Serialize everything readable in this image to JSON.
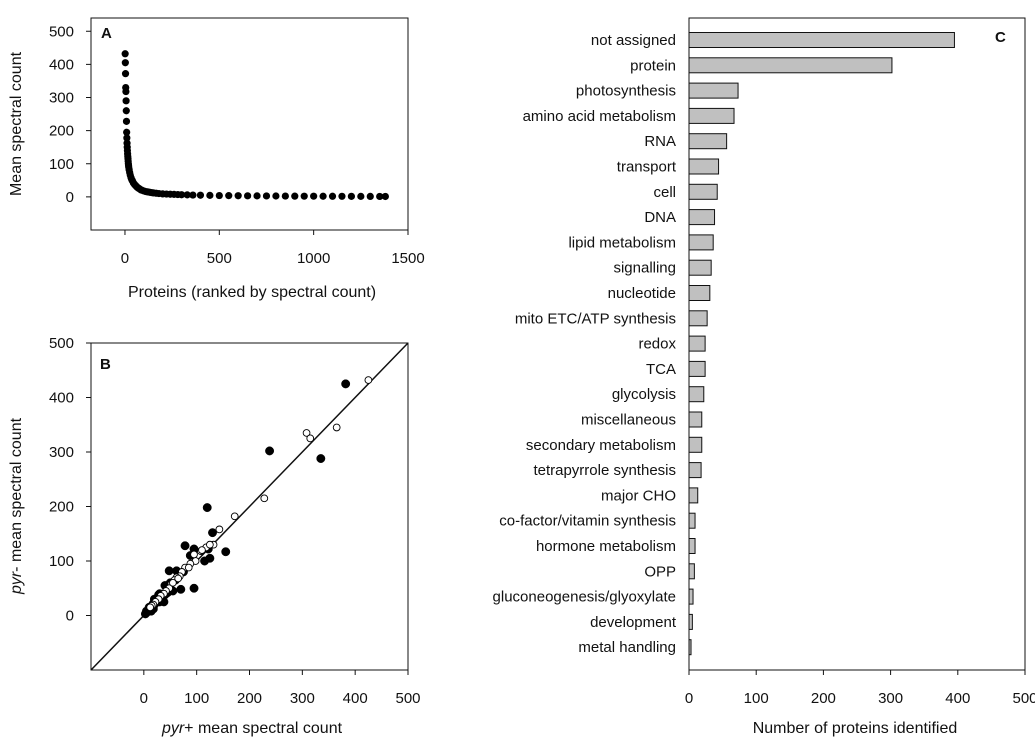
{
  "chart_data": [
    {
      "type": "scatter",
      "panel_label": "A",
      "xlabel": "Proteins (ranked by spectral count)",
      "ylabel": "Mean spectral count",
      "xlim": [
        -180,
        1500
      ],
      "ylim": [
        -100,
        540
      ],
      "xticks": [
        0,
        500,
        1000,
        1500
      ],
      "yticks": [
        0,
        100,
        200,
        300,
        400,
        500
      ],
      "series": [
        {
          "marker": "filled-circle",
          "x": [
            1,
            2,
            3,
            4,
            5,
            6,
            7,
            8,
            9,
            10,
            11,
            12,
            13,
            14,
            15,
            16,
            17,
            18,
            19,
            20,
            22,
            25,
            28,
            32,
            36,
            40,
            45,
            50,
            55,
            60,
            65,
            70,
            75,
            80,
            85,
            90,
            100,
            110,
            120,
            130,
            140,
            150,
            165,
            180,
            200,
            220,
            240,
            260,
            280,
            300,
            330,
            360,
            400,
            450,
            500,
            550,
            600,
            650,
            700,
            750,
            800,
            850,
            900,
            950,
            1000,
            1050,
            1100,
            1150,
            1200,
            1250,
            1300,
            1350,
            1380
          ],
          "y": [
            432,
            405,
            372,
            330,
            318,
            290,
            260,
            228,
            195,
            178,
            162,
            150,
            140,
            130,
            122,
            115,
            108,
            100,
            95,
            90,
            82,
            74,
            66,
            58,
            52,
            48,
            42,
            38,
            35,
            32,
            29,
            27,
            25,
            23,
            21,
            20,
            18,
            16,
            15,
            14,
            13,
            12,
            11,
            10,
            9,
            8.5,
            8,
            7.5,
            7,
            6.5,
            6,
            5.5,
            5,
            4.5,
            4,
            3.8,
            3.5,
            3.2,
            3,
            2.8,
            2.6,
            2.4,
            2.2,
            2.1,
            2,
            1.9,
            1.8,
            1.7,
            1.6,
            1.5,
            1.4,
            1.3,
            1.2
          ]
        }
      ]
    },
    {
      "type": "scatter",
      "panel_label": "B",
      "xlabel_italic": "pyr",
      "xlabel_rest": "+ mean spectral count",
      "ylabel_italic": "pyr",
      "ylabel_rest": "- mean spectral count",
      "xlim": [
        -100,
        500
      ],
      "ylim": [
        -100,
        500
      ],
      "xticks": [
        0,
        100,
        200,
        300,
        400,
        500
      ],
      "yticks": [
        0,
        100,
        200,
        300,
        400,
        500
      ],
      "identity_line": true,
      "series": [
        {
          "marker": "filled-circle",
          "x": [
            382,
            238,
            335,
            120,
            78,
            95,
            122,
            155,
            130,
            88,
            48,
            62,
            95,
            125,
            115,
            70,
            55,
            45,
            40,
            35,
            30,
            28,
            25,
            22,
            20,
            18,
            15,
            12,
            10,
            8,
            5,
            3,
            50,
            40,
            30,
            20,
            10,
            5,
            60,
            75,
            38,
            32,
            28,
            18,
            14
          ],
          "y": [
            425,
            302,
            288,
            198,
            128,
            122,
            122,
            117,
            152,
            110,
            82,
            82,
            50,
            105,
            100,
            48,
            45,
            42,
            38,
            35,
            40,
            30,
            28,
            25,
            20,
            22,
            18,
            15,
            12,
            10,
            5,
            3,
            60,
            55,
            25,
            30,
            15,
            8,
            65,
            80,
            25,
            32,
            38,
            12,
            8
          ],
          "name": ""
        },
        {
          "marker": "open-circle",
          "x": [
            425,
            365,
            308,
            315,
            228,
            172,
            143,
            132,
            118,
            108,
            98,
            88,
            78,
            72,
            68,
            62,
            58,
            52,
            48,
            42,
            38,
            32,
            28,
            22,
            18,
            15,
            12,
            85,
            95,
            110,
            125,
            65,
            55
          ],
          "y": [
            432,
            345,
            335,
            325,
            215,
            182,
            158,
            130,
            125,
            118,
            100,
            95,
            88,
            80,
            72,
            70,
            65,
            58,
            50,
            45,
            40,
            36,
            30,
            25,
            20,
            18,
            15,
            88,
            112,
            120,
            130,
            68,
            60
          ],
          "name": ""
        }
      ]
    },
    {
      "type": "bar",
      "orientation": "horizontal",
      "panel_label": "C",
      "xlabel": "Number of proteins identified",
      "xlim": [
        0,
        500
      ],
      "xticks": [
        0,
        100,
        200,
        300,
        400,
        500
      ],
      "xtick_labels": [
        "0",
        "100",
        "200",
        "300",
        "400",
        "500"
      ],
      "bar_color": "#c0c0c0",
      "categories": [
        "not assigned",
        "protein",
        "photosynthesis",
        "amino acid metabolism",
        "RNA",
        "transport",
        "cell",
        "DNA",
        "lipid metabolism",
        "signalling",
        "nucleotide",
        "mito ETC/ATP synthesis",
        "redox",
        "TCA",
        "glycolysis",
        "miscellaneous",
        "secondary metabolism",
        "tetrapyrrole synthesis",
        "major CHO",
        "co-factor/vitamin synthesis",
        "hormone metabolism",
        "OPP",
        "gluconeogenesis/glyoxylate",
        "development",
        "metal handling"
      ],
      "values": [
        395,
        302,
        73,
        67,
        56,
        44,
        42,
        38,
        36,
        33,
        31,
        27,
        24,
        24,
        22,
        19,
        19,
        18,
        13,
        9,
        9,
        8,
        6,
        5,
        3
      ]
    }
  ]
}
